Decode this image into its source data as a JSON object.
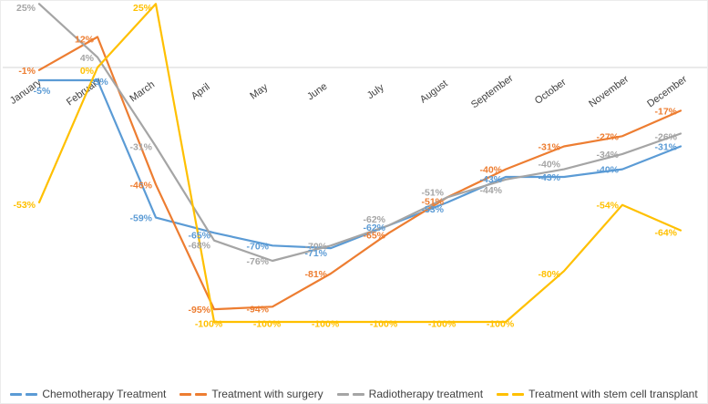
{
  "chart_data": {
    "type": "line",
    "title": "",
    "xlabel": "",
    "ylabel": "",
    "categories": [
      "January",
      "February",
      "March",
      "April",
      "May",
      "June",
      "July",
      "August",
      "September",
      "October",
      "November",
      "December"
    ],
    "series": [
      {
        "name": "Chemotherapy Treatment",
        "color": "#5B9BD5",
        "values": [
          -5,
          -5,
          -59,
          -65,
          -70,
          -71,
          -62,
          -53,
          -43,
          -43,
          -40,
          -31
        ]
      },
      {
        "name": "Treatment with surgery",
        "color": "#ED7D31",
        "values": [
          -1,
          12,
          -46,
          -95,
          -94,
          -81,
          -65,
          -51,
          -40,
          -31,
          -27,
          -17
        ]
      },
      {
        "name": "Radiotherapy treatment",
        "color": "#A5A5A5",
        "values": [
          25,
          4,
          -31,
          -68,
          -76,
          -70,
          -62,
          -51,
          -44,
          -40,
          -34,
          -26
        ]
      },
      {
        "name": "Treatment with stem cell transplant",
        "color": "#FFC000",
        "values": [
          -53,
          0,
          25,
          -100,
          -100,
          -100,
          -100,
          -100,
          -100,
          -80,
          -54,
          -64
        ]
      }
    ],
    "ylim": [
      -110,
      30
    ],
    "grid": false,
    "legend_position": "bottom",
    "data_labels": true,
    "label_format": "{value}%",
    "axis_color": "#DEDEDE",
    "category_label_color": "#404040"
  }
}
